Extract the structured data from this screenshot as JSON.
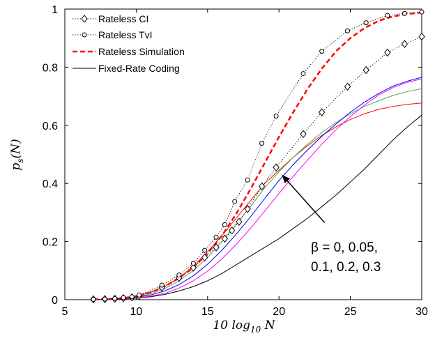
{
  "chart_data": {
    "type": "line",
    "title": "",
    "xlabel": "10 log10 N",
    "ylabel": "ps(N)",
    "xlim": [
      5,
      30
    ],
    "ylim": [
      0,
      1
    ],
    "x_ticks": [
      5,
      10,
      15,
      20,
      25,
      30
    ],
    "y_ticks": [
      0,
      0.2,
      0.4,
      0.6,
      0.8,
      1
    ],
    "x_tick_labels": [
      "5",
      "10",
      "15",
      "20",
      "25",
      "30"
    ],
    "y_tick_labels": [
      "0",
      "0.2",
      "0.4",
      "0.6",
      "0.8",
      "1"
    ],
    "grid": false,
    "legend_position": "top-left",
    "legend": [
      {
        "label": "Rateless CI",
        "style": "dotted",
        "marker": "diamond",
        "color": "#000000"
      },
      {
        "label": "Rateless TvI",
        "style": "dotted",
        "marker": "circle",
        "color": "#000000"
      },
      {
        "label": "Rateless Simulation",
        "style": "dashed",
        "marker": "none",
        "color": "#ff0000"
      },
      {
        "label": "Fixed-Rate Coding",
        "style": "solid",
        "marker": "none",
        "color": "#000000"
      }
    ],
    "series": [
      {
        "name": "Rateless CI",
        "style": "dotted",
        "marker": "diamond",
        "color": "#000000",
        "x": [
          7,
          7.8,
          8.5,
          9.1,
          9.7,
          10.2,
          11.8,
          13,
          14,
          14.8,
          15.6,
          16.2,
          16.7,
          17.2,
          17.8,
          18.8,
          19.8,
          21.7,
          23,
          24.8,
          26.1,
          27.6,
          28.8,
          30
        ],
        "values": [
          0.001,
          0.002,
          0.003,
          0.005,
          0.008,
          0.012,
          0.042,
          0.075,
          0.11,
          0.145,
          0.18,
          0.21,
          0.238,
          0.268,
          0.312,
          0.39,
          0.455,
          0.57,
          0.645,
          0.733,
          0.79,
          0.85,
          0.88,
          0.905
        ]
      },
      {
        "name": "Rateless TvI",
        "style": "dotted",
        "marker": "circle",
        "color": "#000000",
        "x": [
          7,
          7.8,
          8.5,
          9.1,
          9.7,
          10.2,
          11.8,
          13,
          14,
          14.8,
          15.6,
          16.2,
          16.9,
          17.8,
          18.8,
          19.8,
          21.7,
          23,
          24.8,
          26.1,
          27.6,
          28.8,
          30
        ],
        "values": [
          0.001,
          0.002,
          0.004,
          0.007,
          0.01,
          0.016,
          0.05,
          0.085,
          0.125,
          0.17,
          0.215,
          0.258,
          0.338,
          0.412,
          0.538,
          0.632,
          0.778,
          0.855,
          0.925,
          0.953,
          0.978,
          0.985,
          0.99
        ]
      },
      {
        "name": "Rateless Simulation",
        "style": "dashed",
        "marker": "none",
        "color": "#ff0000",
        "x": [
          7,
          8,
          9,
          10,
          11,
          12,
          13,
          14,
          15,
          16,
          17,
          18,
          19,
          20,
          21,
          22,
          23,
          24,
          25,
          26,
          27,
          28,
          29,
          30
        ],
        "values": [
          0.001,
          0.002,
          0.005,
          0.012,
          0.025,
          0.045,
          0.075,
          0.11,
          0.16,
          0.22,
          0.295,
          0.38,
          0.47,
          0.56,
          0.645,
          0.725,
          0.795,
          0.855,
          0.9,
          0.935,
          0.96,
          0.975,
          0.983,
          0.988
        ]
      },
      {
        "name": "",
        "style": "solid",
        "marker": "none",
        "color": "#000000",
        "x": [
          7,
          8,
          9,
          10,
          11,
          12,
          13,
          14,
          15,
          16,
          17,
          18,
          19,
          20,
          21,
          22,
          23,
          24,
          25,
          26,
          27,
          28,
          29,
          30
        ],
        "values": [
          0.0,
          0.001,
          0.002,
          0.005,
          0.01,
          0.018,
          0.03,
          0.045,
          0.065,
          0.09,
          0.12,
          0.15,
          0.18,
          0.21,
          0.245,
          0.28,
          0.32,
          0.36,
          0.405,
          0.45,
          0.5,
          0.55,
          0.595,
          0.635
        ]
      },
      {
        "name": "",
        "style": "solid",
        "marker": "none",
        "color": "#ff0000",
        "x": [
          7,
          8,
          9,
          10,
          11,
          12,
          13,
          14,
          15,
          16,
          17,
          18,
          19,
          20,
          21,
          22,
          23,
          24,
          25,
          26,
          27,
          28,
          29,
          30
        ],
        "values": [
          0.0,
          0.002,
          0.005,
          0.012,
          0.025,
          0.045,
          0.075,
          0.115,
          0.165,
          0.22,
          0.28,
          0.34,
          0.4,
          0.445,
          0.49,
          0.53,
          0.565,
          0.595,
          0.62,
          0.64,
          0.655,
          0.665,
          0.672,
          0.677
        ]
      },
      {
        "name": "",
        "style": "solid",
        "marker": "none",
        "color": "#4caf50",
        "x": [
          7,
          8,
          9,
          10,
          11,
          12,
          13,
          14,
          15,
          16,
          17,
          18,
          19,
          20,
          21,
          22,
          23,
          24,
          25,
          26,
          27,
          28,
          29,
          30
        ],
        "values": [
          0.0,
          0.002,
          0.005,
          0.01,
          0.02,
          0.038,
          0.065,
          0.1,
          0.145,
          0.2,
          0.26,
          0.32,
          0.385,
          0.44,
          0.49,
          0.535,
          0.575,
          0.61,
          0.64,
          0.665,
          0.685,
          0.703,
          0.716,
          0.726
        ]
      },
      {
        "name": "",
        "style": "solid",
        "marker": "none",
        "color": "#0000ff",
        "x": [
          7,
          8,
          9,
          10,
          11,
          12,
          13,
          14,
          15,
          16,
          17,
          18,
          19,
          20,
          21,
          22,
          23,
          24,
          25,
          26,
          27,
          28,
          29,
          30
        ],
        "values": [
          0.0,
          0.001,
          0.004,
          0.008,
          0.016,
          0.03,
          0.052,
          0.082,
          0.122,
          0.17,
          0.225,
          0.285,
          0.348,
          0.41,
          0.465,
          0.515,
          0.562,
          0.605,
          0.645,
          0.68,
          0.71,
          0.735,
          0.752,
          0.765
        ]
      },
      {
        "name": "",
        "style": "solid",
        "marker": "none",
        "color": "#ff00ff",
        "x": [
          7,
          8,
          9,
          10,
          11,
          12,
          13,
          14,
          15,
          16,
          17,
          18,
          19,
          20,
          21,
          22,
          23,
          24,
          25,
          26,
          27,
          28,
          29,
          30
        ],
        "values": [
          0.0,
          0.001,
          0.003,
          0.006,
          0.012,
          0.022,
          0.04,
          0.065,
          0.098,
          0.14,
          0.19,
          0.245,
          0.305,
          0.365,
          0.425,
          0.48,
          0.535,
          0.585,
          0.63,
          0.67,
          0.705,
          0.73,
          0.748,
          0.76
        ]
      }
    ],
    "annotation": {
      "text_lines": [
        "β = 0, 0.05,",
        "0.1, 0.2, 0.3"
      ],
      "arrow_from": [
        23.2,
        0.265
      ],
      "arrow_to": [
        20.2,
        0.43
      ]
    }
  }
}
